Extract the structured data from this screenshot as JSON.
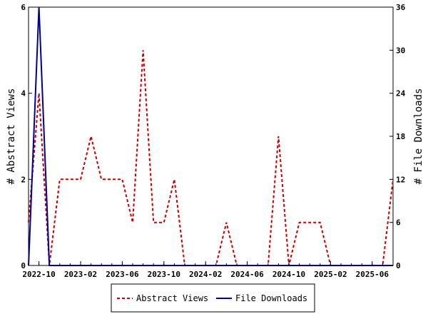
{
  "chart_data": {
    "type": "line",
    "x_dates": [
      "2022-09",
      "2022-10",
      "2022-11",
      "2022-12",
      "2023-01",
      "2023-02",
      "2023-03",
      "2023-04",
      "2023-05",
      "2023-06",
      "2023-07",
      "2023-08",
      "2023-09",
      "2023-10",
      "2023-11",
      "2023-12",
      "2024-01",
      "2024-02",
      "2024-03",
      "2024-04",
      "2024-05",
      "2024-06",
      "2024-07",
      "2024-08",
      "2024-09",
      "2024-10",
      "2024-11",
      "2024-12",
      "2025-01",
      "2025-02",
      "2025-03",
      "2025-04",
      "2025-05",
      "2025-06",
      "2025-07",
      "2025-08"
    ],
    "xticks": [
      "2022-10",
      "2023-02",
      "2023-06",
      "2023-10",
      "2024-02",
      "2024-06",
      "2024-10",
      "2025-02",
      "2025-06"
    ],
    "xlim": [
      "2022-09",
      "2025-08"
    ],
    "left_axis": {
      "label": "# Abstract Views",
      "ylim": [
        0,
        6
      ],
      "ticks": [
        "0",
        "2",
        "4",
        "6"
      ]
    },
    "right_axis": {
      "label": "# File Downloads",
      "ylim": [
        0,
        36
      ],
      "ticks": [
        "0",
        "6",
        "12",
        "18",
        "24",
        "30",
        "36"
      ]
    },
    "series": [
      {
        "name": "Abstract Views",
        "axis": "left",
        "color": "#cc0000",
        "style": "dashed",
        "values": [
          1,
          4,
          0,
          2,
          2,
          2,
          3,
          2,
          2,
          2,
          1,
          5,
          1,
          1,
          2,
          0,
          0,
          0,
          0,
          1,
          0,
          0,
          0,
          0,
          3,
          0,
          1,
          1,
          1,
          0,
          0,
          0,
          0,
          0,
          0,
          2
        ]
      },
      {
        "name": "File Downloads",
        "axis": "right",
        "color": "#000099",
        "style": "solid",
        "values": [
          0,
          36,
          0,
          0,
          0,
          0,
          0,
          0,
          0,
          0,
          0,
          0,
          0,
          0,
          0,
          0,
          0,
          0,
          0,
          0,
          0,
          0,
          0,
          0,
          0,
          0,
          0,
          0,
          0,
          0,
          0,
          0,
          0,
          0,
          0,
          0
        ]
      }
    ],
    "legend": {
      "placement": "bottom-center",
      "entries": [
        "Abstract Views",
        "File Downloads"
      ]
    },
    "grid": false
  }
}
